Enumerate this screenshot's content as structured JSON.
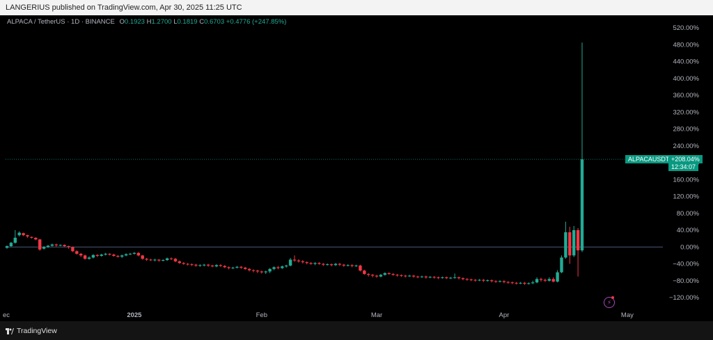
{
  "header": {
    "publisher_line": "LANGERIUS published on TradingView.com, Apr 30, 2025 11:25 UTC"
  },
  "legend": {
    "symbol": "ALPACA / TetherUS · 1D · BINANCE",
    "o_label": "O",
    "o_value": "0.1923",
    "h_label": "H",
    "h_value": "1.2700",
    "l_label": "L",
    "l_value": "0.1819",
    "c_label": "C",
    "c_value": "0.6703",
    "change": "+0.4776 (+247.85%)"
  },
  "price_tags": {
    "symbol": "ALPACAUSDT",
    "pct": "+208.04%",
    "timer": "12:34:07"
  },
  "footer": {
    "brand": "TradingView"
  },
  "colors": {
    "up": "#22ab94",
    "down": "#f23645",
    "background": "#000000",
    "tag": "#089981",
    "flash": "#ab47bc"
  },
  "icons": {
    "flash": "lightning-icon",
    "brand": "tradingview-logo-icon"
  },
  "chart_data": {
    "type": "candlestick",
    "y_scale": "percent",
    "ylim": [
      -135,
      535
    ],
    "y_ticks": [
      "520.00%",
      "480.00%",
      "440.00%",
      "400.00%",
      "360.00%",
      "320.00%",
      "280.00%",
      "240.00%",
      "200.00%",
      "160.00%",
      "120.00%",
      "80.00%",
      "40.00%",
      "0.00%",
      "−40.00%",
      "−80.00%",
      "−120.00%"
    ],
    "y_tick_values": [
      520,
      480,
      440,
      400,
      360,
      320,
      280,
      240,
      200,
      160,
      120,
      80,
      40,
      0,
      -40,
      -80,
      -120
    ],
    "x_labels": [
      {
        "label": "ec",
        "day": 0
      },
      {
        "label": "2025",
        "day": 31
      },
      {
        "label": "Feb",
        "day": 62
      },
      {
        "label": "Mar",
        "day": 90
      },
      {
        "label": "Apr",
        "day": 121
      },
      {
        "label": "May",
        "day": 151
      }
    ],
    "last_value_pct": 208.04,
    "baseline_pct": 0,
    "candles": [
      [
        0,
        -2,
        2,
        -4,
        4
      ],
      [
        1,
        2,
        10,
        0,
        12
      ],
      [
        2,
        10,
        22,
        8,
        40
      ],
      [
        3,
        28,
        34,
        25,
        37
      ],
      [
        4,
        33,
        28,
        26,
        34
      ],
      [
        5,
        28,
        25,
        22,
        29
      ],
      [
        6,
        24,
        22,
        20,
        25
      ],
      [
        7,
        22,
        18,
        16,
        23
      ],
      [
        8,
        18,
        -6,
        -9,
        19
      ],
      [
        9,
        -4,
        0,
        -6,
        2
      ],
      [
        10,
        0,
        3,
        -2,
        5
      ],
      [
        11,
        3,
        6,
        1,
        8
      ],
      [
        12,
        6,
        4,
        1,
        8
      ],
      [
        13,
        4,
        5,
        2,
        6
      ],
      [
        14,
        5,
        2,
        0,
        6
      ],
      [
        15,
        2,
        0,
        -4,
        3
      ],
      [
        16,
        0,
        -10,
        -12,
        1
      ],
      [
        17,
        -10,
        -16,
        -18,
        -8
      ],
      [
        18,
        -16,
        -20,
        -24,
        -14
      ],
      [
        19,
        -20,
        -28,
        -30,
        -18
      ],
      [
        20,
        -28,
        -25,
        -30,
        -22
      ],
      [
        21,
        -25,
        -19,
        -27,
        -17
      ],
      [
        22,
        -19,
        -21,
        -24,
        -17
      ],
      [
        23,
        -21,
        -18,
        -23,
        -16
      ],
      [
        24,
        -18,
        -16,
        -20,
        -14
      ],
      [
        25,
        -16,
        -18,
        -20,
        -15
      ],
      [
        26,
        -18,
        -21,
        -23,
        -16
      ],
      [
        27,
        -21,
        -23,
        -25,
        -19
      ],
      [
        28,
        -23,
        -20,
        -26,
        -18
      ],
      [
        29,
        -20,
        -17,
        -22,
        -15
      ],
      [
        30,
        -17,
        -16,
        -19,
        -14
      ],
      [
        31,
        -16,
        -14,
        -18,
        -12
      ],
      [
        32,
        -14,
        -20,
        -22,
        -12
      ],
      [
        33,
        -20,
        -28,
        -30,
        -19
      ],
      [
        34,
        -28,
        -30,
        -33,
        -26
      ],
      [
        35,
        -30,
        -31,
        -33,
        -28
      ],
      [
        36,
        -31,
        -30,
        -34,
        -28
      ],
      [
        37,
        -30,
        -32,
        -35,
        -29
      ],
      [
        38,
        -32,
        -31,
        -34,
        -29
      ],
      [
        39,
        -31,
        -27,
        -33,
        -25
      ],
      [
        40,
        -27,
        -28,
        -31,
        -25
      ],
      [
        41,
        -28,
        -34,
        -36,
        -26
      ],
      [
        42,
        -34,
        -38,
        -40,
        -32
      ],
      [
        43,
        -38,
        -40,
        -42,
        -36
      ],
      [
        44,
        -40,
        -41,
        -44,
        -38
      ],
      [
        45,
        -41,
        -42,
        -45,
        -39
      ],
      [
        46,
        -42,
        -44,
        -47,
        -40
      ],
      [
        47,
        -44,
        -43,
        -47,
        -41
      ],
      [
        48,
        -43,
        -42,
        -46,
        -40
      ],
      [
        49,
        -42,
        -44,
        -47,
        -40
      ],
      [
        50,
        -44,
        -46,
        -48,
        -42
      ],
      [
        51,
        -46,
        -43,
        -48,
        -41
      ],
      [
        52,
        -43,
        -45,
        -47,
        -41
      ],
      [
        53,
        -45,
        -48,
        -50,
        -43
      ],
      [
        54,
        -48,
        -50,
        -53,
        -46
      ],
      [
        55,
        -50,
        -49,
        -52,
        -47
      ],
      [
        56,
        -49,
        -47,
        -51,
        -45
      ],
      [
        57,
        -47,
        -49,
        -52,
        -45
      ],
      [
        58,
        -49,
        -52,
        -54,
        -47
      ],
      [
        59,
        -52,
        -55,
        -58,
        -50
      ],
      [
        60,
        -55,
        -56,
        -60,
        -53
      ],
      [
        61,
        -56,
        -58,
        -62,
        -54
      ],
      [
        62,
        -58,
        -60,
        -63,
        -56
      ],
      [
        63,
        -60,
        -58,
        -64,
        -56
      ],
      [
        64,
        -58,
        -52,
        -62,
        -50
      ],
      [
        65,
        -52,
        -48,
        -55,
        -46
      ],
      [
        66,
        -48,
        -50,
        -53,
        -45
      ],
      [
        67,
        -50,
        -46,
        -52,
        -44
      ],
      [
        68,
        -46,
        -44,
        -49,
        -42
      ],
      [
        69,
        -44,
        -30,
        -46,
        -26
      ],
      [
        70,
        -30,
        -32,
        -35,
        -20
      ],
      [
        71,
        -32,
        -34,
        -37,
        -29
      ],
      [
        72,
        -34,
        -36,
        -39,
        -31
      ],
      [
        73,
        -36,
        -38,
        -41,
        -34
      ],
      [
        74,
        -38,
        -40,
        -42,
        -36
      ],
      [
        75,
        -40,
        -38,
        -43,
        -36
      ],
      [
        76,
        -38,
        -40,
        -42,
        -36
      ],
      [
        77,
        -40,
        -42,
        -45,
        -38
      ],
      [
        78,
        -42,
        -41,
        -44,
        -39
      ],
      [
        79,
        -41,
        -43,
        -46,
        -39
      ],
      [
        80,
        -43,
        -40,
        -45,
        -38
      ],
      [
        81,
        -40,
        -42,
        -45,
        -38
      ],
      [
        82,
        -42,
        -44,
        -47,
        -40
      ],
      [
        83,
        -44,
        -43,
        -46,
        -41
      ],
      [
        84,
        -43,
        -45,
        -48,
        -41
      ],
      [
        85,
        -45,
        -44,
        -47,
        -42
      ],
      [
        86,
        -44,
        -56,
        -58,
        -42
      ],
      [
        87,
        -56,
        -64,
        -66,
        -54
      ],
      [
        88,
        -64,
        -66,
        -70,
        -62
      ],
      [
        89,
        -66,
        -68,
        -72,
        -64
      ],
      [
        90,
        -68,
        -70,
        -73,
        -66
      ],
      [
        91,
        -70,
        -66,
        -72,
        -64
      ],
      [
        92,
        -66,
        -62,
        -68,
        -60
      ],
      [
        93,
        -62,
        -64,
        -66,
        -60
      ],
      [
        94,
        -64,
        -66,
        -68,
        -62
      ],
      [
        95,
        -66,
        -67,
        -70,
        -64
      ],
      [
        96,
        -67,
        -68,
        -71,
        -65
      ],
      [
        97,
        -68,
        -69,
        -72,
        -66
      ],
      [
        98,
        -69,
        -68,
        -71,
        -66
      ],
      [
        99,
        -68,
        -70,
        -73,
        -66
      ],
      [
        100,
        -70,
        -71,
        -74,
        -68
      ],
      [
        101,
        -71,
        -70,
        -73,
        -68
      ],
      [
        102,
        -70,
        -72,
        -75,
        -68
      ],
      [
        103,
        -72,
        -71,
        -74,
        -69
      ],
      [
        104,
        -71,
        -72,
        -75,
        -69
      ],
      [
        105,
        -72,
        -73,
        -76,
        -70
      ],
      [
        106,
        -73,
        -72,
        -75,
        -70
      ],
      [
        107,
        -72,
        -74,
        -76,
        -70
      ],
      [
        108,
        -74,
        -73,
        -76,
        -71
      ],
      [
        109,
        -73,
        -72,
        -75,
        -63
      ],
      [
        110,
        -72,
        -74,
        -77,
        -70
      ],
      [
        111,
        -74,
        -76,
        -79,
        -72
      ],
      [
        112,
        -76,
        -77,
        -80,
        -74
      ],
      [
        113,
        -77,
        -78,
        -81,
        -75
      ],
      [
        114,
        -78,
        -79,
        -82,
        -76
      ],
      [
        115,
        -79,
        -78,
        -81,
        -76
      ],
      [
        116,
        -78,
        -80,
        -83,
        -76
      ],
      [
        117,
        -80,
        -79,
        -82,
        -77
      ],
      [
        118,
        -79,
        -81,
        -84,
        -77
      ],
      [
        119,
        -81,
        -82,
        -85,
        -79
      ],
      [
        120,
        -82,
        -81,
        -84,
        -79
      ],
      [
        121,
        -81,
        -83,
        -86,
        -79
      ],
      [
        122,
        -83,
        -84,
        -87,
        -81
      ],
      [
        123,
        -84,
        -85,
        -88,
        -82
      ],
      [
        124,
        -85,
        -86,
        -89,
        -83
      ],
      [
        125,
        -86,
        -85,
        -88,
        -83
      ],
      [
        126,
        -85,
        -87,
        -90,
        -83
      ],
      [
        127,
        -87,
        -86,
        -89,
        -84
      ],
      [
        128,
        -86,
        -84,
        -88,
        -80
      ],
      [
        129,
        -84,
        -76,
        -86,
        -72
      ],
      [
        130,
        -76,
        -78,
        -82,
        -73
      ],
      [
        131,
        -78,
        -80,
        -83,
        -75
      ],
      [
        132,
        -80,
        -76,
        -82,
        -72
      ],
      [
        133,
        -76,
        -82,
        -84,
        -72
      ],
      [
        134,
        -82,
        -60,
        -84,
        -55
      ],
      [
        135,
        -60,
        -25,
        -62,
        -20
      ],
      [
        136,
        -25,
        35,
        -28,
        60
      ],
      [
        137,
        35,
        -20,
        -40,
        48
      ],
      [
        138,
        -20,
        40,
        -24,
        50
      ],
      [
        139,
        40,
        -8,
        -70,
        45
      ],
      [
        140,
        -8,
        208,
        -12,
        485
      ]
    ]
  }
}
